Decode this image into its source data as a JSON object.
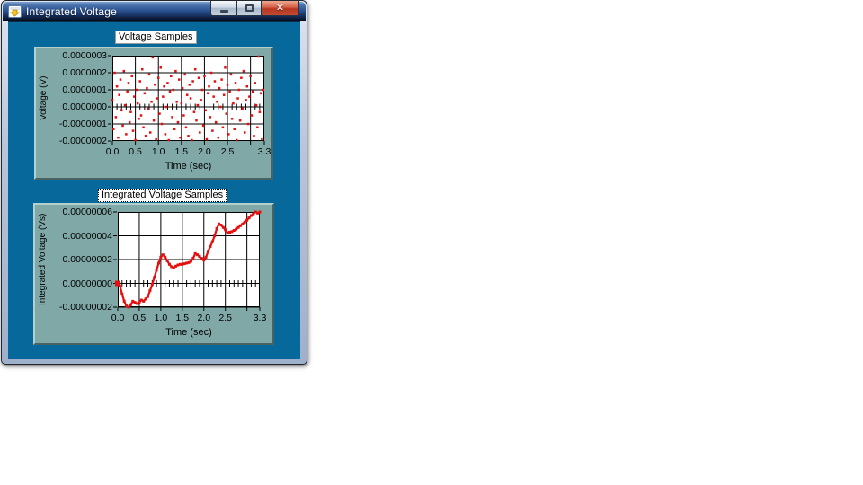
{
  "window": {
    "title": "Integrated Voltage",
    "controls": {
      "minimize": "minimize",
      "maximize": "maximize",
      "close": "close"
    }
  },
  "colors": {
    "client_background": "#07689c",
    "panel_background": "#7fa8a6",
    "plot_background": "#ffffff",
    "grid": "#000000",
    "series_red": "#e60f0f",
    "titlebar_blue": "#2d5392"
  },
  "chart_data": [
    {
      "id": "voltage",
      "type": "scatter",
      "label": "Voltage Samples",
      "xlabel": "Time (sec)",
      "ylabel": "Voltage (V)",
      "xmin": 0,
      "xmax": 3.3,
      "y_scale": 1e-07,
      "ymin": -2,
      "ymax": 3,
      "grid": "on",
      "yticks": [
        {
          "v": 3,
          "label": "0.0000003"
        },
        {
          "v": 2,
          "label": "0.0000002"
        },
        {
          "v": 1,
          "label": "0.0000001"
        },
        {
          "v": 0,
          "label": "0.0000000"
        },
        {
          "v": -1,
          "label": "-0.0000001"
        },
        {
          "v": -2,
          "label": "-0.0000002"
        }
      ],
      "xticks": [
        {
          "v": 0,
          "label": "0.0"
        },
        {
          "v": 0.5,
          "label": "0.5"
        },
        {
          "v": 1.0,
          "label": "1.0"
        },
        {
          "v": 1.5,
          "label": "1.5"
        },
        {
          "v": 2.0,
          "label": "2.0"
        },
        {
          "v": 2.5,
          "label": "2.5"
        },
        {
          "v": 3.3,
          "label": "3.3"
        }
      ],
      "xgrid": [
        0.5,
        1.0,
        1.5,
        2.0,
        2.5,
        3.0
      ],
      "ygrid": [
        2,
        1,
        0,
        -1
      ],
      "minor_tick_step": 0.1,
      "dt": 0.025,
      "values": [
        0.4,
        -1.3,
        2.0,
        -0.6,
        1.2,
        -1.8,
        0.7,
        1.6,
        -0.2,
        -1.1,
        2.1,
        0.1,
        -1.6,
        0.9,
        1.4,
        -0.9,
        -0.3,
        1.8,
        -1.4,
        0.6,
        -2.0,
        1.0,
        0.2,
        -0.7,
        1.5,
        -0.5,
        2.2,
        -1.2,
        0.8,
        -1.7,
        1.1,
        -0.1,
        1.9,
        -1.5,
        0.3,
        2.9,
        -0.8,
        1.3,
        -1.9,
        0.5,
        1.7,
        -0.4,
        2.3,
        -1.0,
        0.6,
        1.2,
        -1.6,
        0.0,
        1.4,
        -2.1,
        0.9,
        1.8,
        -0.6,
        1.0,
        -1.3,
        2.1,
        0.3,
        -0.9,
        1.6,
        -1.8,
        0.2,
        1.1,
        -0.5,
        1.9,
        -1.2,
        0.7,
        -1.7,
        1.3,
        0.5,
        -2.0,
        1.5,
        -0.3,
        2.2,
        -0.8,
        0.1,
        1.7,
        -1.5,
        0.4,
        1.0,
        -1.1,
        1.8,
        -0.2,
        -1.9,
        0.8,
        1.2,
        -0.6,
        2.0,
        -1.4,
        0.6,
        1.5,
        -0.9,
        0.3,
        -1.8,
        1.1,
        0.0,
        1.6,
        -1.2,
        0.7,
        2.3,
        -0.4,
        1.3,
        -1.6,
        0.9,
        1.9,
        -0.7,
        0.2,
        -1.3,
        1.4,
        -2.0,
        0.5,
        1.0,
        -0.8,
        1.7,
        -0.1,
        2.1,
        -1.5,
        0.4,
        1.2,
        -1.0,
        0.6,
        1.8,
        -0.5,
        0.9,
        -1.7,
        1.4,
        0.1,
        -1.2,
        3.0,
        -0.3,
        0.8,
        -1.9,
        1.0
      ]
    },
    {
      "id": "integrated",
      "type": "line",
      "label": "Integrated Voltage Samples",
      "xlabel": "Time (sec)",
      "ylabel": "Integrated Voltage (Vs)",
      "xmin": 0,
      "xmax": 3.3,
      "y_scale": 1e-08,
      "ymin": -2,
      "ymax": 6,
      "grid": "on",
      "yticks": [
        {
          "v": 6,
          "label": "0.00000006"
        },
        {
          "v": 4,
          "label": "0.00000004"
        },
        {
          "v": 2,
          "label": "0.00000002"
        },
        {
          "v": 0,
          "label": "0.00000000"
        },
        {
          "v": -2,
          "label": "-0.00000002"
        }
      ],
      "xticks": [
        {
          "v": 0,
          "label": "0.0"
        },
        {
          "v": 0.5,
          "label": "0.5"
        },
        {
          "v": 1.0,
          "label": "1.0"
        },
        {
          "v": 1.5,
          "label": "1.5"
        },
        {
          "v": 2.0,
          "label": "2.0"
        },
        {
          "v": 2.5,
          "label": "2.5"
        },
        {
          "v": 3.3,
          "label": "3.3"
        }
      ],
      "xgrid": [
        0.5,
        1.0,
        1.5,
        2.0,
        2.5,
        3.0
      ],
      "ygrid": [
        4,
        2,
        0,
        -2
      ],
      "minor_tick_step": 0.1,
      "dt": 0.05,
      "values": [
        0,
        -0.2,
        -0.9,
        -1.5,
        -1.9,
        -2.0,
        -1.8,
        -1.5,
        -1.6,
        -1.7,
        -1.6,
        -1.4,
        -1.5,
        -1.3,
        -1.1,
        -0.6,
        -0.1,
        0.5,
        1.1,
        1.7,
        2.2,
        2.4,
        2.2,
        1.9,
        1.6,
        1.4,
        1.3,
        1.45,
        1.55,
        1.6,
        1.6,
        1.65,
        1.7,
        1.75,
        1.85,
        2.1,
        2.5,
        2.4,
        2.25,
        2.1,
        1.95,
        2.2,
        2.7,
        3.1,
        3.5,
        4.0,
        4.6,
        5.0,
        4.9,
        4.7,
        4.5,
        4.25,
        4.3,
        4.35,
        4.45,
        4.55,
        4.7,
        4.85,
        5.0,
        5.15,
        5.3,
        5.5,
        5.7,
        5.85,
        6.0,
        5.9,
        6.0
      ]
    }
  ]
}
